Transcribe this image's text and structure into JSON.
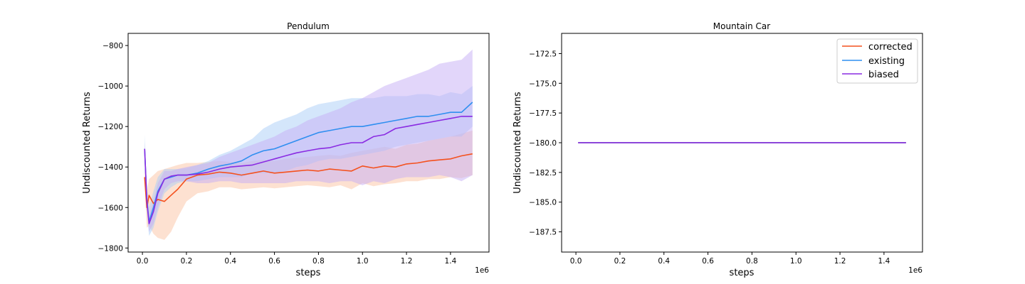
{
  "chart_data": [
    {
      "type": "line",
      "title": "Pendulum",
      "xlabel": "steps",
      "ylabel": "Undiscounted Returns",
      "x_offset_text": "1e6",
      "xlim": [
        -0.065,
        1.575
      ],
      "ylim": [
        -1820,
        -740
      ],
      "x_ticks": [
        0.0,
        0.2,
        0.4,
        0.6,
        0.8,
        1.0,
        1.2,
        1.4
      ],
      "x_tick_labels": [
        "0.0",
        "0.2",
        "0.4",
        "0.6",
        "0.8",
        "1.0",
        "1.2",
        "1.4"
      ],
      "y_ticks": [
        -1800,
        -1600,
        -1400,
        -1200,
        -1000,
        -800
      ],
      "y_tick_labels": [
        "−1800",
        "−1600",
        "−1400",
        "−1200",
        "−1000",
        "−800"
      ],
      "grid": false,
      "legend": null,
      "series": [
        {
          "name": "corrected",
          "color": "#f4511e",
          "band_color": "#fcc4a4",
          "x": [
            0.01,
            0.02,
            0.03,
            0.05,
            0.07,
            0.1,
            0.13,
            0.16,
            0.2,
            0.25,
            0.3,
            0.35,
            0.4,
            0.45,
            0.5,
            0.55,
            0.6,
            0.65,
            0.7,
            0.75,
            0.8,
            0.85,
            0.9,
            0.95,
            1.0,
            1.05,
            1.1,
            1.15,
            1.2,
            1.25,
            1.3,
            1.35,
            1.4,
            1.45,
            1.5
          ],
          "y": [
            -1450,
            -1600,
            -1540,
            -1580,
            -1560,
            -1570,
            -1540,
            -1510,
            -1460,
            -1440,
            -1435,
            -1425,
            -1430,
            -1440,
            -1430,
            -1420,
            -1430,
            -1425,
            -1420,
            -1415,
            -1420,
            -1410,
            -1415,
            -1420,
            -1395,
            -1405,
            -1395,
            -1400,
            -1385,
            -1380,
            -1370,
            -1365,
            -1360,
            -1345,
            -1335
          ],
          "band_upper": [
            -1420,
            -1520,
            -1460,
            -1440,
            -1420,
            -1410,
            -1400,
            -1390,
            -1380,
            -1380,
            -1375,
            -1370,
            -1375,
            -1380,
            -1370,
            -1365,
            -1370,
            -1360,
            -1355,
            -1350,
            -1345,
            -1340,
            -1345,
            -1330,
            -1320,
            -1310,
            -1300,
            -1310,
            -1290,
            -1285,
            -1270,
            -1260,
            -1250,
            -1235,
            -1220
          ],
          "band_lower": [
            -1480,
            -1700,
            -1690,
            -1730,
            -1750,
            -1760,
            -1720,
            -1650,
            -1570,
            -1530,
            -1520,
            -1500,
            -1500,
            -1510,
            -1505,
            -1500,
            -1505,
            -1500,
            -1495,
            -1490,
            -1495,
            -1500,
            -1490,
            -1510,
            -1480,
            -1495,
            -1485,
            -1480,
            -1470,
            -1470,
            -1460,
            -1460,
            -1450,
            -1455,
            -1440
          ]
        },
        {
          "name": "existing",
          "color": "#2f8ff0",
          "band_color": "#a9cdf7",
          "x": [
            0.01,
            0.02,
            0.03,
            0.05,
            0.07,
            0.1,
            0.13,
            0.16,
            0.2,
            0.25,
            0.3,
            0.35,
            0.4,
            0.45,
            0.5,
            0.55,
            0.6,
            0.65,
            0.7,
            0.75,
            0.8,
            0.85,
            0.9,
            0.95,
            1.0,
            1.05,
            1.1,
            1.15,
            1.2,
            1.25,
            1.3,
            1.35,
            1.4,
            1.45,
            1.5
          ],
          "y": [
            -1310,
            -1560,
            -1670,
            -1600,
            -1520,
            -1460,
            -1450,
            -1440,
            -1440,
            -1430,
            -1410,
            -1395,
            -1385,
            -1370,
            -1340,
            -1320,
            -1310,
            -1290,
            -1270,
            -1250,
            -1230,
            -1220,
            -1210,
            -1200,
            -1200,
            -1190,
            -1180,
            -1170,
            -1160,
            -1150,
            -1150,
            -1140,
            -1130,
            -1130,
            -1080
          ],
          "band_upper": [
            -1240,
            -1500,
            -1600,
            -1520,
            -1450,
            -1410,
            -1410,
            -1410,
            -1405,
            -1390,
            -1370,
            -1340,
            -1320,
            -1290,
            -1260,
            -1210,
            -1180,
            -1160,
            -1140,
            -1110,
            -1090,
            -1080,
            -1070,
            -1060,
            -1060,
            -1060,
            -1050,
            -1050,
            -1050,
            -1040,
            -1040,
            -1050,
            -1030,
            -1040,
            -1000
          ],
          "band_lower": [
            -1380,
            -1620,
            -1740,
            -1700,
            -1620,
            -1530,
            -1500,
            -1480,
            -1470,
            -1470,
            -1460,
            -1450,
            -1450,
            -1450,
            -1430,
            -1430,
            -1430,
            -1420,
            -1400,
            -1390,
            -1370,
            -1360,
            -1360,
            -1350,
            -1340,
            -1330,
            -1320,
            -1300,
            -1290,
            -1280,
            -1270,
            -1260,
            -1250,
            -1250,
            -1200
          ]
        },
        {
          "name": "biased",
          "color": "#8a2be2",
          "band_color": "#c5aef5",
          "x": [
            0.01,
            0.02,
            0.03,
            0.05,
            0.07,
            0.1,
            0.13,
            0.16,
            0.2,
            0.25,
            0.3,
            0.35,
            0.4,
            0.45,
            0.5,
            0.55,
            0.6,
            0.65,
            0.7,
            0.75,
            0.8,
            0.85,
            0.9,
            0.95,
            1.0,
            1.05,
            1.1,
            1.15,
            1.2,
            1.25,
            1.3,
            1.35,
            1.4,
            1.45,
            1.5
          ],
          "y": [
            -1310,
            -1570,
            -1680,
            -1620,
            -1530,
            -1460,
            -1445,
            -1440,
            -1440,
            -1435,
            -1425,
            -1410,
            -1400,
            -1395,
            -1390,
            -1375,
            -1360,
            -1345,
            -1330,
            -1320,
            -1310,
            -1305,
            -1290,
            -1280,
            -1280,
            -1250,
            -1240,
            -1210,
            -1200,
            -1190,
            -1180,
            -1170,
            -1160,
            -1150,
            -1150
          ],
          "band_upper": [
            -1280,
            -1530,
            -1640,
            -1570,
            -1480,
            -1420,
            -1420,
            -1410,
            -1400,
            -1390,
            -1380,
            -1350,
            -1330,
            -1310,
            -1290,
            -1270,
            -1250,
            -1220,
            -1200,
            -1170,
            -1150,
            -1130,
            -1110,
            -1080,
            -1060,
            -1030,
            -1000,
            -980,
            -960,
            -940,
            -920,
            -890,
            -880,
            -870,
            -820
          ],
          "band_lower": [
            -1340,
            -1610,
            -1720,
            -1680,
            -1600,
            -1510,
            -1480,
            -1470,
            -1470,
            -1480,
            -1480,
            -1470,
            -1470,
            -1480,
            -1480,
            -1480,
            -1480,
            -1480,
            -1470,
            -1470,
            -1470,
            -1480,
            -1470,
            -1470,
            -1490,
            -1470,
            -1480,
            -1460,
            -1450,
            -1450,
            -1450,
            -1440,
            -1450,
            -1470,
            -1440
          ]
        }
      ]
    },
    {
      "type": "line",
      "title": "Mountain Car",
      "xlabel": "steps",
      "ylabel": "Undiscounted Returns",
      "x_offset_text": "1e6",
      "xlim": [
        -0.065,
        1.575
      ],
      "ylim": [
        -189.2,
        -170.8
      ],
      "x_ticks": [
        0.0,
        0.2,
        0.4,
        0.6,
        0.8,
        1.0,
        1.2,
        1.4
      ],
      "x_tick_labels": [
        "0.0",
        "0.2",
        "0.4",
        "0.6",
        "0.8",
        "1.0",
        "1.2",
        "1.4"
      ],
      "y_ticks": [
        -187.5,
        -185.0,
        -182.5,
        -180.0,
        -177.5,
        -175.0,
        -172.5
      ],
      "y_tick_labels": [
        "−187.5",
        "−185.0",
        "−182.5",
        "−180.0",
        "−177.5",
        "−175.0",
        "−172.5"
      ],
      "grid": false,
      "legend": "top-right",
      "series": [
        {
          "name": "corrected",
          "color": "#f4511e",
          "x": [
            0.01,
            1.5
          ],
          "y": [
            -180.0,
            -180.0
          ]
        },
        {
          "name": "existing",
          "color": "#2f8ff0",
          "x": [
            0.01,
            1.5
          ],
          "y": [
            -180.0,
            -180.0
          ]
        },
        {
          "name": "biased",
          "color": "#8a2be2",
          "x": [
            0.01,
            1.5
          ],
          "y": [
            -180.0,
            -180.0
          ]
        }
      ]
    }
  ]
}
